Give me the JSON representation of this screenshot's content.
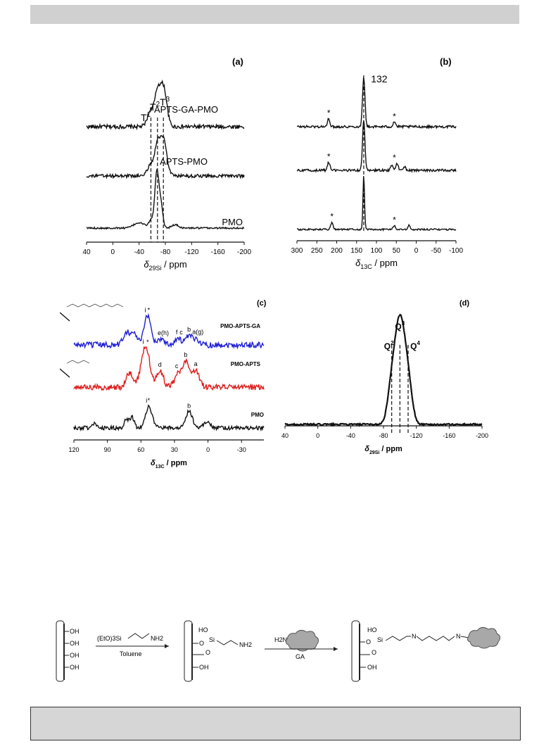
{
  "chart_data": [
    {
      "panel": "(a)",
      "type": "line",
      "xlabel_symbol": "δ",
      "xlabel_sub": "29Si",
      "xlabel_rest": " / ppm",
      "xlim": [
        40,
        -200
      ],
      "xticks": [
        40,
        0,
        -40,
        -80,
        -120,
        -160,
        -200
      ],
      "x_reversed": true,
      "series": [
        {
          "name": "APTS-GA-PMO",
          "peaks": [
            {
              "x": -58,
              "h": 0.25,
              "w": 5
            },
            {
              "x": -68,
              "h": 0.45,
              "w": 4
            },
            {
              "x": -77,
              "h": 0.6,
              "w": 5
            }
          ],
          "noise": 0.03
        },
        {
          "name": "APTS-PMO",
          "peaks": [
            {
              "x": -58,
              "h": 0.18,
              "w": 5
            },
            {
              "x": -68,
              "h": 0.42,
              "w": 4
            },
            {
              "x": -77,
              "h": 0.55,
              "w": 5
            }
          ],
          "noise": 0.025
        },
        {
          "name": "PMO",
          "peaks": [
            {
              "x": -40,
              "h": 0.08,
              "w": 8
            },
            {
              "x": -59,
              "h": 0.12,
              "w": 4
            },
            {
              "x": -67,
              "h": 0.8,
              "w": 3
            },
            {
              "x": -73,
              "h": 0.35,
              "w": 3
            },
            {
              "x": -95,
              "h": 0.05,
              "w": 5
            }
          ],
          "noise": 0.012
        }
      ],
      "reference_lines": [
        -58,
        -68,
        -77
      ],
      "annotations": [
        {
          "text": "T",
          "sup": "1",
          "x": -50
        },
        {
          "text": "T",
          "sup": "2",
          "x": -64
        },
        {
          "text": "T",
          "sup": "3",
          "x": -79
        }
      ]
    },
    {
      "panel": "(b)",
      "type": "line",
      "xlabel_symbol": "δ",
      "xlabel_sub": "13C",
      "xlabel_rest": " / ppm",
      "xlim": [
        300,
        -100
      ],
      "xticks": [
        300,
        250,
        200,
        150,
        100,
        50,
        0,
        -50,
        -100
      ],
      "x_reversed": true,
      "series": [
        {
          "name": "APTS-GA-PMO",
          "peaks": [
            {
              "x": 220,
              "h": 0.12,
              "w": 3
            },
            {
              "x": 132,
              "h": 0.75,
              "w": 3
            },
            {
              "x": 55,
              "h": 0.08,
              "w": 3
            }
          ],
          "noise": 0.018
        },
        {
          "name": "APTS-PMO",
          "peaks": [
            {
              "x": 220,
              "h": 0.12,
              "w": 3
            },
            {
              "x": 132,
              "h": 0.75,
              "w": 3
            },
            {
              "x": 62,
              "h": 0.08,
              "w": 3
            },
            {
              "x": 48,
              "h": 0.1,
              "w": 3
            },
            {
              "x": 30,
              "h": 0.06,
              "w": 3
            }
          ],
          "noise": 0.018
        },
        {
          "name": "PMO",
          "peaks": [
            {
              "x": 212,
              "h": 0.1,
              "w": 3
            },
            {
              "x": 132,
              "h": 0.8,
              "w": 2
            },
            {
              "x": 55,
              "h": 0.06,
              "w": 3
            },
            {
              "x": 18,
              "h": 0.06,
              "w": 3
            }
          ],
          "noise": 0.012
        }
      ],
      "reference_lines": [
        132
      ],
      "annotations": [
        {
          "text": "132",
          "x": 132
        },
        {
          "text": "*",
          "x": 220,
          "series": "APTS-GA-PMO"
        },
        {
          "text": "*",
          "x": 55,
          "series": "APTS-GA-PMO"
        },
        {
          "text": "*",
          "x": 220,
          "series": "APTS-PMO"
        },
        {
          "text": "*",
          "x": 55,
          "series": "APTS-PMO"
        },
        {
          "text": "*",
          "x": 212,
          "series": "PMO"
        },
        {
          "text": "*",
          "x": 55,
          "series": "PMO"
        }
      ]
    },
    {
      "panel": "(c)",
      "type": "line",
      "xlabel_symbol": "δ",
      "xlabel_sub": "13C",
      "xlabel_rest": " / ppm",
      "xlim": [
        120,
        -50
      ],
      "xticks": [
        120,
        90,
        60,
        30,
        0,
        -30
      ],
      "x_reversed": true,
      "series": [
        {
          "name": "PMO-APTS-GA",
          "color": "#1f1fd6",
          "peaks": [
            {
              "x": 73,
              "h": 0.3,
              "w": 3
            },
            {
              "x": 66,
              "h": 0.25,
              "w": 3
            },
            {
              "x": 54,
              "h": 0.7,
              "w": 3
            },
            {
              "x": 42,
              "h": 0.15,
              "w": 3
            },
            {
              "x": 27,
              "h": 0.15,
              "w": 3
            },
            {
              "x": 17,
              "h": 0.2,
              "w": 3
            },
            {
              "x": 10,
              "h": 0.12,
              "w": 3
            }
          ],
          "noise": 0.07
        },
        {
          "name": "PMO-APTS",
          "color": "#e01b1b",
          "peaks": [
            {
              "x": 70,
              "h": 0.35,
              "w": 3
            },
            {
              "x": 58,
              "h": 0.6,
              "w": 3
            },
            {
              "x": 54,
              "h": 0.6,
              "w": 3
            },
            {
              "x": 43,
              "h": 0.4,
              "w": 3
            },
            {
              "x": 27,
              "h": 0.3,
              "w": 3
            },
            {
              "x": 20,
              "h": 0.6,
              "w": 3
            },
            {
              "x": 11,
              "h": 0.4,
              "w": 3
            }
          ],
          "noise": 0.07
        },
        {
          "name": "PMO",
          "color": "#111111",
          "peaks": [
            {
              "x": 101,
              "h": 0.1,
              "w": 2
            },
            {
              "x": 73,
              "h": 0.2,
              "w": 2
            },
            {
              "x": 68,
              "h": 0.25,
              "w": 2
            },
            {
              "x": 53,
              "h": 0.5,
              "w": 3
            },
            {
              "x": 17,
              "h": 0.4,
              "w": 3
            },
            {
              "x": 1,
              "h": 0.15,
              "w": 3
            }
          ],
          "noise": 0.045
        }
      ],
      "annotations": [
        {
          "text": "i",
          "x": 56,
          "series": "PMO-APTS-GA"
        },
        {
          "text": "*",
          "x": 53,
          "series": "PMO-APTS-GA"
        },
        {
          "text": "e(h)",
          "x": 40,
          "series": "PMO-APTS-GA"
        },
        {
          "text": "f",
          "x": 28,
          "series": "PMO-APTS-GA"
        },
        {
          "text": "c",
          "x": 24,
          "series": "PMO-APTS-GA"
        },
        {
          "text": "b",
          "x": 17,
          "series": "PMO-APTS-GA"
        },
        {
          "text": "a(g)",
          "x": 9,
          "series": "PMO-APTS-GA"
        },
        {
          "text": "i",
          "x": 58,
          "series": "PMO-APTS"
        },
        {
          "text": "*",
          "x": 54,
          "series": "PMO-APTS"
        },
        {
          "text": "d",
          "x": 43,
          "series": "PMO-APTS"
        },
        {
          "text": "c",
          "x": 28,
          "series": "PMO-APTS"
        },
        {
          "text": "b",
          "x": 20,
          "series": "PMO-APTS"
        },
        {
          "text": "a",
          "x": 11,
          "series": "PMO-APTS"
        },
        {
          "text": "i",
          "x": 55,
          "series": "PMO"
        },
        {
          "text": "*",
          "x": 53,
          "series": "PMO"
        },
        {
          "text": "b",
          "x": 17,
          "series": "PMO"
        }
      ],
      "structure_labels": [
        "b",
        "c",
        "e",
        "f",
        "g",
        "h",
        "a",
        "b",
        "c",
        "d",
        "NH2",
        "O",
        "Si",
        "N"
      ]
    },
    {
      "panel": "(d)",
      "type": "line",
      "xlabel_symbol": "δ",
      "xlabel_sub": "29Si",
      "xlabel_rest": " / ppm",
      "xlim": [
        40,
        -200
      ],
      "xticks": [
        40,
        0,
        -40,
        -80,
        -120,
        -160,
        -200
      ],
      "x_reversed": true,
      "series": [
        {
          "name": "",
          "peaks": [
            {
              "x": -90,
              "h": 0.32,
              "w": 5
            },
            {
              "x": -100,
              "h": 0.95,
              "w": 6
            },
            {
              "x": -110,
              "h": 0.35,
              "w": 5
            }
          ],
          "noise": 0.008
        }
      ],
      "reference_lines": [
        -90,
        -100,
        -110
      ],
      "annotations": [
        {
          "text": "Q",
          "sup": "2",
          "x": -90
        },
        {
          "text": "Q",
          "sup": "3",
          "x": -100
        },
        {
          "text": "Q",
          "sup": "4",
          "x": -110
        }
      ]
    }
  ],
  "scheme": {
    "step1_reagent": "(EtO)3Si",
    "step1_reagent_end": "NH2",
    "step1_solvent": "Toluene",
    "step2_reagent": "H2N",
    "step2_label": "GA",
    "oh": "OH",
    "ho": "HO",
    "si": "Si",
    "o": "O",
    "n": "N",
    "nh2": "NH2"
  }
}
